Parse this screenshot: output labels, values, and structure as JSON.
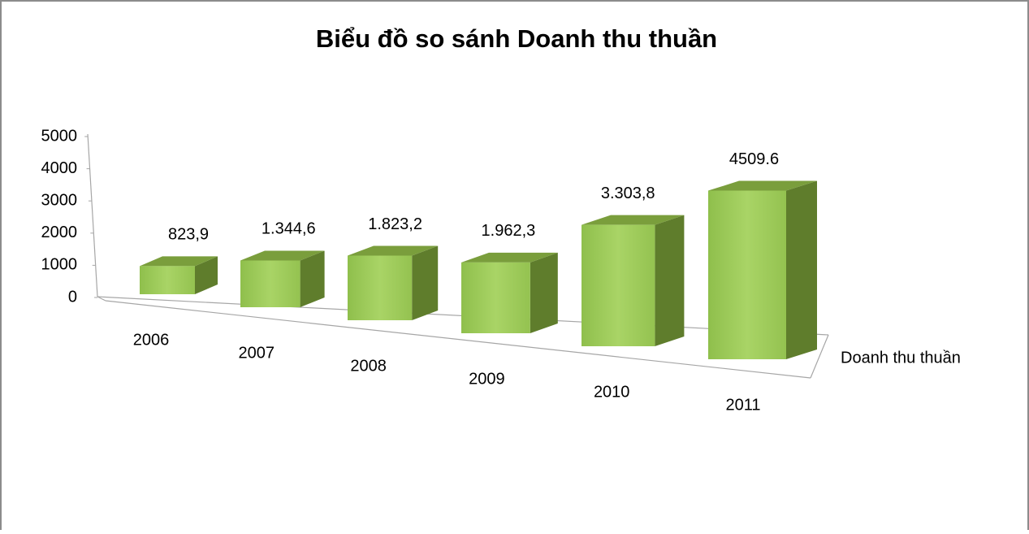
{
  "chart_data": {
    "type": "bar3d",
    "title": "Biểu đồ so sánh Doanh thu  thuần",
    "categories": [
      "2006",
      "2007",
      "2008",
      "2009",
      "2010",
      "2011"
    ],
    "series": [
      {
        "name": "Doanh thu thuần",
        "color": "#9bc95a",
        "values": [
          823.9,
          1344.6,
          1823.2,
          1962.3,
          3303.8,
          4509.6
        ],
        "value_labels": [
          "823,9",
          "1.344,6",
          "1.823,2",
          "1.962,3",
          "3.303,8",
          "4509.6"
        ]
      }
    ],
    "ylim": [
      0,
      5000
    ],
    "yticks": [
      0,
      1000,
      2000,
      3000,
      4000,
      5000
    ]
  }
}
